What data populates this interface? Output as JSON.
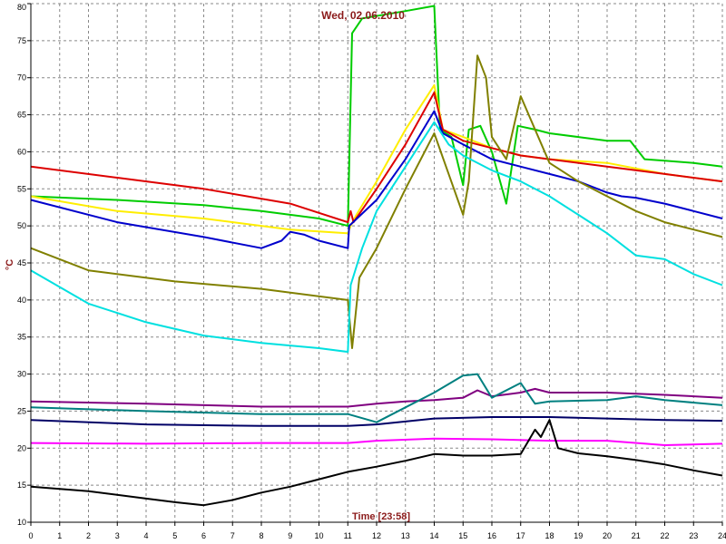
{
  "chart_data": {
    "type": "line",
    "title": "Wed, 02.06.2010",
    "xlabel": "Time [23:58]",
    "ylabel": "°C",
    "xlim": [
      0,
      24
    ],
    "ylim": [
      10,
      80
    ],
    "x_ticks": [
      "0",
      "1",
      "2",
      "3",
      "4",
      "5",
      "6",
      "7",
      "8",
      "9",
      "10",
      "11",
      "12",
      "13",
      "14",
      "15",
      "16",
      "17",
      "18",
      "19",
      "20",
      "21",
      "22",
      "23",
      "24"
    ],
    "y_ticks": [
      "10",
      "15",
      "20",
      "25",
      "30",
      "35",
      "40",
      "45",
      "50",
      "55",
      "60",
      "65",
      "70",
      "75",
      "80"
    ],
    "grid": true,
    "series": [
      {
        "color": "#00cc00",
        "points": [
          [
            0,
            54
          ],
          [
            3,
            53.5
          ],
          [
            6,
            52.8
          ],
          [
            8,
            52
          ],
          [
            10,
            51
          ],
          [
            11,
            50
          ],
          [
            11.15,
            76
          ],
          [
            11.5,
            78
          ],
          [
            13,
            79
          ],
          [
            14,
            79.7
          ],
          [
            14.2,
            63
          ],
          [
            14.6,
            62
          ],
          [
            15,
            55.5
          ],
          [
            15.2,
            63
          ],
          [
            15.6,
            63.5
          ],
          [
            16,
            60
          ],
          [
            16.5,
            53
          ],
          [
            16.9,
            63.5
          ],
          [
            17.5,
            63
          ],
          [
            18,
            62.5
          ],
          [
            19,
            62
          ],
          [
            20,
            61.5
          ],
          [
            20.8,
            61.5
          ],
          [
            21.3,
            59
          ],
          [
            22,
            58.8
          ],
          [
            23,
            58.5
          ],
          [
            24,
            58
          ]
        ]
      },
      {
        "color": "#ffee00",
        "points": [
          [
            0,
            54
          ],
          [
            3,
            52
          ],
          [
            6,
            51
          ],
          [
            9,
            49.5
          ],
          [
            11,
            49
          ],
          [
            11.1,
            50
          ],
          [
            11.3,
            51.5
          ],
          [
            12,
            56
          ],
          [
            13,
            63
          ],
          [
            14,
            69
          ],
          [
            14.3,
            63
          ],
          [
            15,
            62
          ],
          [
            16,
            60.5
          ],
          [
            17,
            59.5
          ],
          [
            18,
            59
          ],
          [
            20,
            58.5
          ],
          [
            22,
            57
          ],
          [
            24,
            56
          ]
        ]
      },
      {
        "color": "#dd0000",
        "points": [
          [
            0,
            58
          ],
          [
            3,
            56.5
          ],
          [
            6,
            55
          ],
          [
            9,
            53
          ],
          [
            11,
            50.5
          ],
          [
            11.1,
            52
          ],
          [
            11.2,
            50.5
          ],
          [
            12,
            55
          ],
          [
            13,
            61
          ],
          [
            14,
            68
          ],
          [
            14.3,
            63
          ],
          [
            15,
            61.5
          ],
          [
            16,
            60.5
          ],
          [
            17,
            59.5
          ],
          [
            18,
            59
          ],
          [
            20,
            58
          ],
          [
            22,
            57
          ],
          [
            24,
            56
          ]
        ]
      },
      {
        "color": "#0000cc",
        "points": [
          [
            0,
            53.5
          ],
          [
            3,
            50.5
          ],
          [
            6,
            48.5
          ],
          [
            8,
            47
          ],
          [
            8.7,
            48
          ],
          [
            9,
            49.2
          ],
          [
            9.5,
            48.8
          ],
          [
            10,
            48
          ],
          [
            11,
            47
          ],
          [
            11.05,
            50
          ],
          [
            12,
            53.5
          ],
          [
            13,
            59
          ],
          [
            14,
            65.5
          ],
          [
            14.3,
            62.5
          ],
          [
            15,
            61
          ],
          [
            16,
            59
          ],
          [
            17,
            58
          ],
          [
            18,
            57
          ],
          [
            19,
            56
          ],
          [
            20,
            54.5
          ],
          [
            20.5,
            54
          ],
          [
            21,
            53.8
          ],
          [
            22,
            53
          ],
          [
            23,
            52
          ],
          [
            24,
            51
          ]
        ]
      },
      {
        "color": "#808000",
        "points": [
          [
            0,
            47
          ],
          [
            2,
            44
          ],
          [
            5,
            42.5
          ],
          [
            8,
            41.5
          ],
          [
            11,
            40
          ],
          [
            11.15,
            33.5
          ],
          [
            11.4,
            43
          ],
          [
            12,
            47
          ],
          [
            13,
            55
          ],
          [
            14,
            62.5
          ],
          [
            14.5,
            57
          ],
          [
            15,
            51.5
          ],
          [
            15.2,
            56
          ],
          [
            15.5,
            73
          ],
          [
            15.8,
            70
          ],
          [
            16,
            62
          ],
          [
            16.5,
            59
          ],
          [
            17,
            67.5
          ],
          [
            17.5,
            63
          ],
          [
            18,
            58.5
          ],
          [
            19,
            56
          ],
          [
            20,
            54
          ],
          [
            21,
            52
          ],
          [
            22,
            50.5
          ],
          [
            23,
            49.5
          ],
          [
            24,
            48.5
          ]
        ]
      },
      {
        "color": "#00e0e0",
        "points": [
          [
            0,
            44
          ],
          [
            2,
            39.5
          ],
          [
            4,
            37
          ],
          [
            6,
            35.2
          ],
          [
            8,
            34.2
          ],
          [
            10,
            33.5
          ],
          [
            11,
            33
          ],
          [
            11.1,
            42
          ],
          [
            11.5,
            47
          ],
          [
            12,
            52
          ],
          [
            13,
            58
          ],
          [
            14,
            64
          ],
          [
            14.5,
            61
          ],
          [
            15,
            59.5
          ],
          [
            16,
            57.5
          ],
          [
            17,
            56
          ],
          [
            18,
            54
          ],
          [
            19,
            51.5
          ],
          [
            20,
            49
          ],
          [
            21,
            46
          ],
          [
            22,
            45.5
          ],
          [
            23,
            43.5
          ],
          [
            24,
            42
          ]
        ]
      },
      {
        "color": "#800080",
        "points": [
          [
            0,
            26.3
          ],
          [
            4,
            26
          ],
          [
            8,
            25.6
          ],
          [
            11,
            25.6
          ],
          [
            12,
            26
          ],
          [
            13,
            26.3
          ],
          [
            14,
            26.5
          ],
          [
            15,
            26.8
          ],
          [
            15.5,
            27.8
          ],
          [
            16,
            27
          ],
          [
            17,
            27.5
          ],
          [
            17.5,
            28
          ],
          [
            18,
            27.5
          ],
          [
            20,
            27.5
          ],
          [
            22,
            27.2
          ],
          [
            24,
            26.8
          ]
        ]
      },
      {
        "color": "#008080",
        "points": [
          [
            0,
            25.5
          ],
          [
            4,
            25
          ],
          [
            8,
            24.6
          ],
          [
            11,
            24.6
          ],
          [
            12,
            23.5
          ],
          [
            13,
            25.5
          ],
          [
            14,
            27.5
          ],
          [
            15,
            29.8
          ],
          [
            15.5,
            30
          ],
          [
            16,
            26.8
          ],
          [
            17,
            28.8
          ],
          [
            17.5,
            26
          ],
          [
            18,
            26.3
          ],
          [
            20,
            26.5
          ],
          [
            21,
            27
          ],
          [
            22,
            26.5
          ],
          [
            24,
            25.8
          ]
        ]
      },
      {
        "color": "#000066",
        "points": [
          [
            0,
            23.8
          ],
          [
            4,
            23.2
          ],
          [
            8,
            23
          ],
          [
            11,
            23
          ],
          [
            12,
            23.2
          ],
          [
            14,
            24
          ],
          [
            16,
            24.2
          ],
          [
            18,
            24.2
          ],
          [
            20,
            24
          ],
          [
            22,
            23.8
          ],
          [
            24,
            23.7
          ]
        ]
      },
      {
        "color": "#ff00ff",
        "points": [
          [
            0,
            20.7
          ],
          [
            4,
            20.6
          ],
          [
            8,
            20.7
          ],
          [
            11,
            20.7
          ],
          [
            12,
            21
          ],
          [
            14,
            21.3
          ],
          [
            16,
            21.2
          ],
          [
            18,
            21
          ],
          [
            20,
            21
          ],
          [
            22,
            20.4
          ],
          [
            24,
            20.6
          ]
        ]
      },
      {
        "color": "#000000",
        "points": [
          [
            0,
            14.8
          ],
          [
            2,
            14.2
          ],
          [
            4,
            13.2
          ],
          [
            5,
            12.7
          ],
          [
            6,
            12.3
          ],
          [
            7,
            13
          ],
          [
            8,
            14
          ],
          [
            9,
            14.8
          ],
          [
            10,
            15.8
          ],
          [
            11,
            16.8
          ],
          [
            12,
            17.5
          ],
          [
            13,
            18.3
          ],
          [
            14,
            19.2
          ],
          [
            15,
            19
          ],
          [
            16,
            19
          ],
          [
            17,
            19.2
          ],
          [
            17.5,
            22.5
          ],
          [
            17.7,
            21.5
          ],
          [
            18,
            23.8
          ],
          [
            18.3,
            20
          ],
          [
            19,
            19.3
          ],
          [
            20,
            18.9
          ],
          [
            21,
            18.4
          ],
          [
            22,
            17.8
          ],
          [
            23,
            17
          ],
          [
            24,
            16.3
          ]
        ]
      }
    ]
  }
}
